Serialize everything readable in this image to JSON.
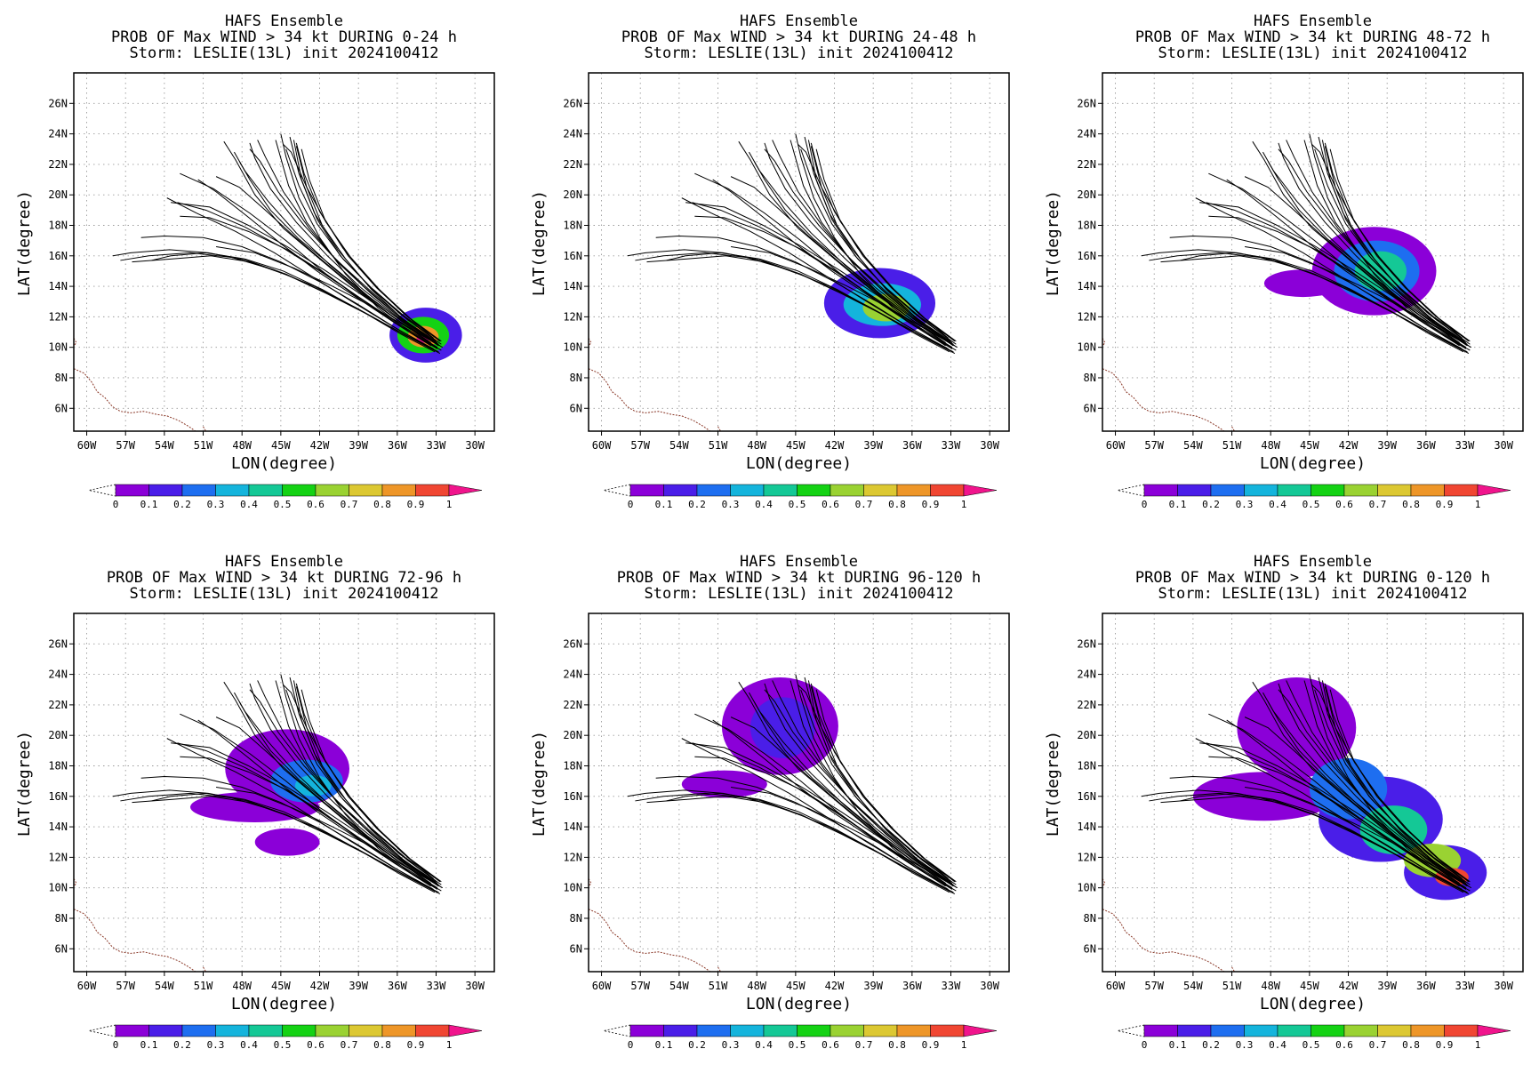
{
  "colors": {
    "background": "#ffffff",
    "frame": "#000000",
    "grid": "#9a9a9a",
    "track": "#000000",
    "coast": "#8b3a2a"
  },
  "colorbar": {
    "tick_labels": [
      "0",
      "0.1",
      "0.2",
      "0.3",
      "0.4",
      "0.5",
      "0.6",
      "0.7",
      "0.8",
      "0.9",
      "1"
    ],
    "colors": [
      "#8b00d8",
      "#4a1ee8",
      "#1e6ef0",
      "#14b4dc",
      "#14c896",
      "#14d214",
      "#9ad232",
      "#dcc832",
      "#ee9628",
      "#f04632",
      "#f0148c"
    ]
  },
  "chart_data": [
    {
      "type": "heatmap",
      "title": "HAFS Ensemble",
      "subtitle": "PROB OF Max WIND > 34 kt DURING  0-24 h",
      "storm": "Storm: LESLIE(13L) init 2024100412",
      "xlabel": "LON(degree)",
      "ylabel": "LAT(degree)",
      "xlim": [
        -61,
        -28.5
      ],
      "ylim": [
        4.5,
        28
      ],
      "x_ticks": [
        "60W",
        "57W",
        "54W",
        "51W",
        "48W",
        "45W",
        "42W",
        "39W",
        "36W",
        "33W",
        "30W"
      ],
      "y_ticks": [
        "6N",
        "8N",
        "10N",
        "12N",
        "14N",
        "16N",
        "18N",
        "20N",
        "22N",
        "24N",
        "26N"
      ],
      "prob_blobs": [
        {
          "lon": -33.8,
          "lat": 10.8,
          "rlon": 2.8,
          "rlat": 1.8,
          "p": 0.15
        },
        {
          "lon": -34.0,
          "lat": 10.8,
          "rlon": 2.0,
          "rlat": 1.2,
          "p": 0.5
        },
        {
          "lon": -34.0,
          "lat": 10.7,
          "rlon": 1.2,
          "rlat": 0.7,
          "p": 0.85
        },
        {
          "lon": -34.0,
          "lat": 10.6,
          "rlon": 0.5,
          "rlat": 0.3,
          "p": 1.0
        }
      ]
    },
    {
      "type": "heatmap",
      "title": "HAFS Ensemble",
      "subtitle": "PROB OF Max WIND > 34 kt DURING 24-48 h",
      "storm": "Storm: LESLIE(13L) init 2024100412",
      "xlabel": "LON(degree)",
      "ylabel": "LAT(degree)",
      "xlim": [
        -61,
        -28.5
      ],
      "ylim": [
        4.5,
        28
      ],
      "x_ticks": [
        "60W",
        "57W",
        "54W",
        "51W",
        "48W",
        "45W",
        "42W",
        "39W",
        "36W",
        "33W",
        "30W"
      ],
      "y_ticks": [
        "6N",
        "8N",
        "10N",
        "12N",
        "14N",
        "16N",
        "18N",
        "20N",
        "22N",
        "24N",
        "26N"
      ],
      "prob_blobs": [
        {
          "lon": -38.5,
          "lat": 12.9,
          "rlon": 4.3,
          "rlat": 2.3,
          "p": 0.12
        },
        {
          "lon": -38.3,
          "lat": 12.8,
          "rlon": 3.0,
          "rlat": 1.4,
          "p": 0.35
        },
        {
          "lon": -38.0,
          "lat": 12.6,
          "rlon": 1.8,
          "rlat": 0.9,
          "p": 0.6
        }
      ]
    },
    {
      "type": "heatmap",
      "title": "HAFS Ensemble",
      "subtitle": "PROB OF Max WIND > 34 kt DURING 48-72 h",
      "storm": "Storm: LESLIE(13L) init 2024100412",
      "xlabel": "LON(degree)",
      "ylabel": "LAT(degree)",
      "xlim": [
        -61,
        -28.5
      ],
      "ylim": [
        4.5,
        28
      ],
      "x_ticks": [
        "60W",
        "57W",
        "54W",
        "51W",
        "48W",
        "45W",
        "42W",
        "39W",
        "36W",
        "33W",
        "30W"
      ],
      "y_ticks": [
        "6N",
        "8N",
        "10N",
        "12N",
        "14N",
        "16N",
        "18N",
        "20N",
        "22N",
        "24N",
        "26N"
      ],
      "prob_blobs": [
        {
          "lon": -40.0,
          "lat": 15.0,
          "rlon": 4.8,
          "rlat": 2.9,
          "p": 0.08
        },
        {
          "lon": -45.5,
          "lat": 14.2,
          "rlon": 3.0,
          "rlat": 0.9,
          "p": 0.08
        },
        {
          "lon": -39.8,
          "lat": 15.0,
          "rlon": 3.3,
          "rlat": 2.0,
          "p": 0.25
        },
        {
          "lon": -39.5,
          "lat": 15.0,
          "rlon": 2.0,
          "rlat": 1.3,
          "p": 0.4
        }
      ]
    },
    {
      "type": "heatmap",
      "title": "HAFS Ensemble",
      "subtitle": "PROB OF Max WIND > 34 kt DURING 72-96 h",
      "storm": "Storm: LESLIE(13L) init 2024100412",
      "xlabel": "LON(degree)",
      "ylabel": "LAT(degree)",
      "xlim": [
        -61,
        -28.5
      ],
      "ylim": [
        4.5,
        28
      ],
      "x_ticks": [
        "60W",
        "57W",
        "54W",
        "51W",
        "48W",
        "45W",
        "42W",
        "39W",
        "36W",
        "33W",
        "30W"
      ],
      "y_ticks": [
        "6N",
        "8N",
        "10N",
        "12N",
        "14N",
        "16N",
        "18N",
        "20N",
        "22N",
        "24N",
        "26N"
      ],
      "prob_blobs": [
        {
          "lon": -44.5,
          "lat": 17.8,
          "rlon": 4.8,
          "rlat": 2.6,
          "p": 0.08
        },
        {
          "lon": -47.0,
          "lat": 15.3,
          "rlon": 5.0,
          "rlat": 1.0,
          "p": 0.08
        },
        {
          "lon": -44.5,
          "lat": 13.0,
          "rlon": 2.5,
          "rlat": 0.9,
          "p": 0.06
        },
        {
          "lon": -43.0,
          "lat": 17.0,
          "rlon": 2.8,
          "rlat": 1.4,
          "p": 0.2
        },
        {
          "lon": -42.5,
          "lat": 16.7,
          "rlon": 1.4,
          "rlat": 0.7,
          "p": 0.32
        }
      ]
    },
    {
      "type": "heatmap",
      "title": "HAFS Ensemble",
      "subtitle": "PROB OF Max WIND > 34 kt DURING 96-120 h",
      "storm": "Storm: LESLIE(13L) init 2024100412",
      "xlabel": "LON(degree)",
      "ylabel": "LAT(degree)",
      "xlim": [
        -61,
        -28.5
      ],
      "ylim": [
        4.5,
        28
      ],
      "x_ticks": [
        "60W",
        "57W",
        "54W",
        "51W",
        "48W",
        "45W",
        "42W",
        "39W",
        "36W",
        "33W",
        "30W"
      ],
      "y_ticks": [
        "6N",
        "8N",
        "10N",
        "12N",
        "14N",
        "16N",
        "18N",
        "20N",
        "22N",
        "24N",
        "26N"
      ],
      "prob_blobs": [
        {
          "lon": -46.2,
          "lat": 20.6,
          "rlon": 4.5,
          "rlat": 3.2,
          "p": 0.08
        },
        {
          "lon": -50.5,
          "lat": 16.8,
          "rlon": 3.3,
          "rlat": 0.9,
          "p": 0.08
        },
        {
          "lon": -46.0,
          "lat": 20.5,
          "rlon": 2.5,
          "rlat": 2.0,
          "p": 0.18
        }
      ]
    },
    {
      "type": "heatmap",
      "title": "HAFS Ensemble",
      "subtitle": "PROB OF Max WIND > 34 kt DURING 0-120 h",
      "storm": "Storm: LESLIE(13L) init 2024100412",
      "xlabel": "LON(degree)",
      "ylabel": "LAT(degree)",
      "xlim": [
        -61,
        -28.5
      ],
      "ylim": [
        4.5,
        28
      ],
      "x_ticks": [
        "60W",
        "57W",
        "54W",
        "51W",
        "48W",
        "45W",
        "42W",
        "39W",
        "36W",
        "33W",
        "30W"
      ],
      "y_ticks": [
        "6N",
        "8N",
        "10N",
        "12N",
        "14N",
        "16N",
        "18N",
        "20N",
        "22N",
        "24N",
        "26N"
      ],
      "prob_blobs": [
        {
          "lon": -46.0,
          "lat": 20.5,
          "rlon": 4.6,
          "rlat": 3.3,
          "p": 0.08
        },
        {
          "lon": -48.5,
          "lat": 16.0,
          "rlon": 5.5,
          "rlat": 1.6,
          "p": 0.08
        },
        {
          "lon": -39.5,
          "lat": 14.5,
          "rlon": 4.8,
          "rlat": 2.8,
          "p": 0.1
        },
        {
          "lon": -34.5,
          "lat": 11.0,
          "rlon": 3.2,
          "rlat": 1.8,
          "p": 0.15
        },
        {
          "lon": -42.0,
          "lat": 16.5,
          "rlon": 3.0,
          "rlat": 2.0,
          "p": 0.25
        },
        {
          "lon": -38.5,
          "lat": 13.8,
          "rlon": 2.6,
          "rlat": 1.6,
          "p": 0.45
        },
        {
          "lon": -35.5,
          "lat": 11.8,
          "rlon": 2.2,
          "rlat": 1.1,
          "p": 0.65
        },
        {
          "lon": -34.0,
          "lat": 10.7,
          "rlon": 1.3,
          "rlat": 0.6,
          "p": 0.9
        }
      ]
    }
  ],
  "tracks": [
    [
      [
        -32.5,
        10.0
      ],
      [
        -35.0,
        11.2
      ],
      [
        -38.0,
        12.7
      ],
      [
        -41.0,
        14.0
      ],
      [
        -44.0,
        15.2
      ],
      [
        -47.0,
        16.2
      ],
      [
        -50.0,
        16.6
      ]
    ],
    [
      [
        -32.8,
        10.2
      ],
      [
        -35.5,
        11.5
      ],
      [
        -38.5,
        13.3
      ],
      [
        -41.5,
        15.0
      ],
      [
        -44.5,
        16.6
      ],
      [
        -47.5,
        18.0
      ],
      [
        -50.5,
        19.2
      ],
      [
        -53.5,
        19.5
      ]
    ],
    [
      [
        -33.0,
        10.4
      ],
      [
        -35.5,
        11.8
      ],
      [
        -38.0,
        13.8
      ],
      [
        -40.0,
        15.8
      ],
      [
        -41.8,
        18.0
      ],
      [
        -43.0,
        20.5
      ],
      [
        -43.8,
        23.2
      ]
    ],
    [
      [
        -32.6,
        9.8
      ],
      [
        -35.0,
        11.0
      ],
      [
        -37.5,
        12.6
      ],
      [
        -40.0,
        14.8
      ],
      [
        -42.0,
        17.2
      ],
      [
        -43.6,
        19.8
      ],
      [
        -44.6,
        22.5
      ],
      [
        -45.0,
        24.0
      ]
    ],
    [
      [
        -33.2,
        10.6
      ],
      [
        -35.8,
        12.2
      ],
      [
        -38.4,
        14.2
      ],
      [
        -40.6,
        16.4
      ],
      [
        -42.4,
        18.8
      ],
      [
        -43.6,
        21.4
      ],
      [
        -44.3,
        23.8
      ]
    ],
    [
      [
        -32.9,
        9.9
      ],
      [
        -35.6,
        11.3
      ],
      [
        -38.5,
        13.0
      ],
      [
        -41.5,
        14.8
      ],
      [
        -44.5,
        16.4
      ],
      [
        -47.5,
        17.6
      ],
      [
        -50.5,
        18.5
      ],
      [
        -52.8,
        18.6
      ]
    ],
    [
      [
        -33.4,
        10.3
      ],
      [
        -36.2,
        11.9
      ],
      [
        -39.2,
        13.8
      ],
      [
        -42.0,
        15.8
      ],
      [
        -44.8,
        17.8
      ],
      [
        -47.0,
        20.0
      ],
      [
        -48.5,
        22.3
      ],
      [
        -49.4,
        23.5
      ]
    ],
    [
      [
        -32.7,
        10.1
      ],
      [
        -35.3,
        11.6
      ],
      [
        -38.0,
        13.5
      ],
      [
        -40.5,
        15.5
      ],
      [
        -42.8,
        17.8
      ],
      [
        -44.8,
        20.2
      ],
      [
        -46.2,
        22.5
      ],
      [
        -46.8,
        23.6
      ]
    ],
    [
      [
        -33.1,
        9.7
      ],
      [
        -35.8,
        10.9
      ],
      [
        -38.8,
        12.4
      ],
      [
        -41.8,
        13.8
      ],
      [
        -44.8,
        15.0
      ],
      [
        -47.8,
        15.8
      ],
      [
        -50.8,
        16.2
      ],
      [
        -53.5,
        16.0
      ],
      [
        -55.0,
        15.7
      ]
    ],
    [
      [
        -32.8,
        10.5
      ],
      [
        -35.4,
        12.0
      ],
      [
        -38.0,
        13.9
      ],
      [
        -40.4,
        16.0
      ],
      [
        -42.2,
        18.4
      ],
      [
        -43.4,
        21.0
      ],
      [
        -44.0,
        23.6
      ]
    ],
    [
      [
        -33.5,
        10.0
      ],
      [
        -36.4,
        11.4
      ],
      [
        -39.5,
        13.0
      ],
      [
        -42.5,
        14.6
      ],
      [
        -45.5,
        16.2
      ],
      [
        -48.5,
        17.6
      ],
      [
        -51.5,
        18.8
      ],
      [
        -53.8,
        19.8
      ]
    ],
    [
      [
        -32.9,
        10.3
      ],
      [
        -35.6,
        11.7
      ],
      [
        -38.4,
        13.4
      ],
      [
        -41.2,
        15.4
      ],
      [
        -43.8,
        17.5
      ],
      [
        -46.0,
        19.6
      ],
      [
        -47.8,
        21.6
      ],
      [
        -48.6,
        22.8
      ]
    ],
    [
      [
        -33.2,
        9.9
      ],
      [
        -36.0,
        11.2
      ],
      [
        -39.0,
        12.8
      ],
      [
        -42.0,
        14.3
      ],
      [
        -45.0,
        15.6
      ],
      [
        -48.0,
        16.6
      ],
      [
        -51.0,
        17.2
      ],
      [
        -54.0,
        17.3
      ],
      [
        -55.8,
        17.2
      ]
    ],
    [
      [
        -32.6,
        10.4
      ],
      [
        -35.0,
        11.9
      ],
      [
        -37.4,
        13.8
      ],
      [
        -39.6,
        15.9
      ],
      [
        -41.5,
        18.2
      ],
      [
        -43.0,
        20.5
      ],
      [
        -44.2,
        22.8
      ],
      [
        -44.8,
        23.3
      ]
    ],
    [
      [
        -33.3,
        10.2
      ],
      [
        -36.0,
        11.8
      ],
      [
        -38.8,
        13.6
      ],
      [
        -41.5,
        15.5
      ],
      [
        -44.0,
        17.3
      ],
      [
        -46.2,
        19.0
      ],
      [
        -48.2,
        20.5
      ],
      [
        -50.0,
        21.2
      ]
    ],
    [
      [
        -33.0,
        10.0
      ],
      [
        -35.8,
        11.4
      ],
      [
        -38.8,
        13.1
      ],
      [
        -41.8,
        15.0
      ],
      [
        -44.6,
        17.0
      ],
      [
        -47.4,
        18.8
      ],
      [
        -50.2,
        20.4
      ],
      [
        -52.8,
        21.4
      ]
    ],
    [
      [
        -32.7,
        9.6
      ],
      [
        -35.4,
        10.8
      ],
      [
        -38.4,
        12.2
      ],
      [
        -41.4,
        13.5
      ],
      [
        -44.4,
        14.7
      ],
      [
        -47.4,
        15.6
      ],
      [
        -50.4,
        16.0
      ],
      [
        -53.4,
        15.8
      ],
      [
        -56.5,
        15.6
      ]
    ],
    [
      [
        -33.4,
        10.5
      ],
      [
        -36.0,
        12.1
      ],
      [
        -38.6,
        14.0
      ],
      [
        -41.0,
        16.0
      ],
      [
        -43.0,
        18.2
      ],
      [
        -44.4,
        20.6
      ],
      [
        -45.2,
        23.0
      ],
      [
        -45.4,
        23.6
      ]
    ],
    [
      [
        -32.8,
        10.1
      ],
      [
        -35.5,
        11.6
      ],
      [
        -38.3,
        13.4
      ],
      [
        -41.0,
        15.3
      ],
      [
        -43.6,
        17.1
      ],
      [
        -45.8,
        19.0
      ],
      [
        -47.4,
        21.0
      ],
      [
        -48.2,
        22.2
      ]
    ],
    [
      [
        -33.1,
        9.8
      ],
      [
        -36.0,
        11.1
      ],
      [
        -39.2,
        12.6
      ],
      [
        -42.4,
        14.0
      ],
      [
        -45.6,
        15.1
      ],
      [
        -48.8,
        15.9
      ],
      [
        -52.0,
        16.2
      ],
      [
        -55.2,
        16.0
      ],
      [
        -57.4,
        15.7
      ]
    ],
    [
      [
        -32.6,
        10.2
      ],
      [
        -35.2,
        11.8
      ],
      [
        -37.8,
        13.7
      ],
      [
        -40.2,
        15.8
      ],
      [
        -42.2,
        18.1
      ],
      [
        -43.6,
        20.6
      ],
      [
        -44.6,
        23.0
      ]
    ],
    [
      [
        -33.3,
        10.4
      ],
      [
        -36.0,
        12.0
      ],
      [
        -38.8,
        13.9
      ],
      [
        -41.4,
        16.0
      ],
      [
        -43.8,
        18.2
      ],
      [
        -45.8,
        20.4
      ],
      [
        -47.0,
        22.4
      ],
      [
        -47.4,
        23.4
      ]
    ],
    [
      [
        -32.9,
        10.0
      ],
      [
        -35.8,
        11.5
      ],
      [
        -38.8,
        13.2
      ],
      [
        -41.8,
        14.9
      ],
      [
        -44.8,
        16.5
      ],
      [
        -47.8,
        17.9
      ],
      [
        -50.8,
        19.0
      ],
      [
        -53.0,
        19.5
      ]
    ],
    [
      [
        -33.2,
        10.6
      ],
      [
        -35.6,
        12.3
      ],
      [
        -38.0,
        14.3
      ],
      [
        -40.2,
        16.5
      ],
      [
        -42.0,
        18.9
      ],
      [
        -43.2,
        21.4
      ],
      [
        -43.8,
        23.4
      ]
    ],
    [
      [
        -32.8,
        9.7
      ],
      [
        -35.6,
        10.9
      ],
      [
        -38.6,
        12.3
      ],
      [
        -41.6,
        13.6
      ],
      [
        -44.6,
        14.8
      ],
      [
        -47.6,
        15.7
      ],
      [
        -50.6,
        16.2
      ],
      [
        -53.6,
        16.4
      ],
      [
        -56.6,
        16.2
      ],
      [
        -58.0,
        16.0
      ]
    ],
    [
      [
        -33.0,
        10.3
      ],
      [
        -35.6,
        11.9
      ],
      [
        -38.2,
        13.8
      ],
      [
        -40.8,
        15.8
      ],
      [
        -43.2,
        18.0
      ],
      [
        -45.2,
        20.2
      ],
      [
        -46.6,
        22.2
      ],
      [
        -47.4,
        23.0
      ]
    ],
    [
      [
        -33.4,
        10.1
      ],
      [
        -36.2,
        11.6
      ],
      [
        -39.2,
        13.3
      ],
      [
        -42.2,
        15.0
      ],
      [
        -45.0,
        16.8
      ],
      [
        -47.6,
        18.6
      ],
      [
        -50.0,
        20.2
      ],
      [
        -51.4,
        21.0
      ]
    ],
    [
      [
        -32.7,
        10.4
      ],
      [
        -35.2,
        12.0
      ],
      [
        -37.6,
        13.9
      ],
      [
        -39.8,
        16.0
      ],
      [
        -41.6,
        18.4
      ],
      [
        -42.8,
        21.0
      ],
      [
        -43.4,
        23.0
      ]
    ]
  ],
  "coast": [
    [
      [
        -61.0,
        8.6
      ],
      [
        -60.2,
        8.3
      ],
      [
        -59.6,
        7.7
      ],
      [
        -59.2,
        7.1
      ],
      [
        -58.6,
        6.7
      ],
      [
        -58.0,
        6.1
      ],
      [
        -57.4,
        5.8
      ],
      [
        -56.6,
        5.7
      ],
      [
        -55.6,
        5.8
      ],
      [
        -54.6,
        5.6
      ],
      [
        -53.8,
        5.5
      ],
      [
        -52.9,
        5.2
      ],
      [
        -52.1,
        4.8
      ],
      [
        -51.6,
        4.5
      ]
    ],
    [
      [
        -61.0,
        10.6
      ],
      [
        -60.8,
        10.3
      ],
      [
        -61.0,
        10.1
      ]
    ],
    [
      [
        -51.0,
        4.8
      ],
      [
        -50.8,
        4.5
      ]
    ]
  ]
}
